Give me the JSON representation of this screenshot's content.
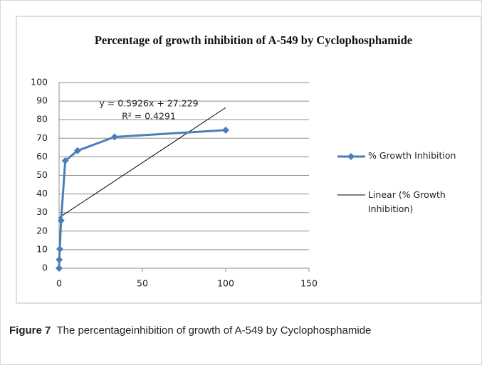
{
  "chart_data": {
    "type": "line",
    "title": "Percentage of growth  inhibition  of A-549 by Cyclophosphamide",
    "x": [
      0,
      0.1,
      0.4,
      1.2,
      3.7,
      11.1,
      33.3,
      100
    ],
    "series": [
      {
        "name": "% Growth Inhibition",
        "color": "#4a7ebb",
        "values": [
          0,
          4.6,
          10.3,
          25.7,
          57.9,
          63.3,
          70.7,
          74.4
        ]
      }
    ],
    "trendline": {
      "name": "Linear (% Growth Inhibition)",
      "color": "#000000",
      "slope": 0.5926,
      "intercept": 27.229,
      "xrange": [
        0,
        100
      ],
      "equation": "y = 0.5926x + 27.229",
      "r2_label": "R² = 0.4291"
    },
    "xlim": [
      0,
      150
    ],
    "xticks": [
      0,
      50,
      100,
      150
    ],
    "ylim": [
      0,
      100
    ],
    "yticks": [
      0,
      10,
      20,
      30,
      40,
      50,
      60,
      70,
      80,
      90,
      100
    ],
    "grid": true,
    "legend": "right"
  },
  "caption": {
    "label": "Figure 7",
    "text": "The percentageinhibition of growth of A-549 by Cyclophosphamide"
  }
}
